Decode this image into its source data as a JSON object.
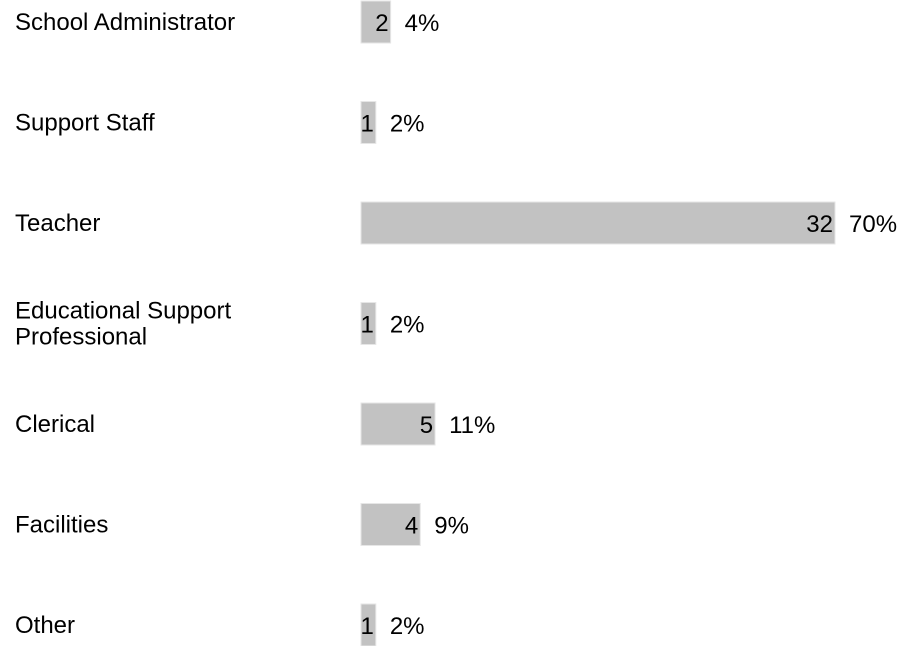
{
  "chart_data": {
    "type": "bar",
    "orientation": "horizontal",
    "categories": [
      [
        "School Administrator"
      ],
      [
        "Support Staff"
      ],
      [
        "Teacher"
      ],
      [
        "Educational Support",
        "Professional"
      ],
      [
        "Clerical"
      ],
      [
        "Facilities"
      ],
      [
        "Other"
      ]
    ],
    "values": [
      2,
      1,
      32,
      1,
      5,
      4,
      1
    ],
    "percent_labels": [
      "4%",
      "2%",
      "70%",
      "2%",
      "11%",
      "9%",
      "2%"
    ],
    "xlim": [
      0,
      32
    ],
    "bar_color": "#c2c2c2",
    "grid": false,
    "legend": "none"
  }
}
